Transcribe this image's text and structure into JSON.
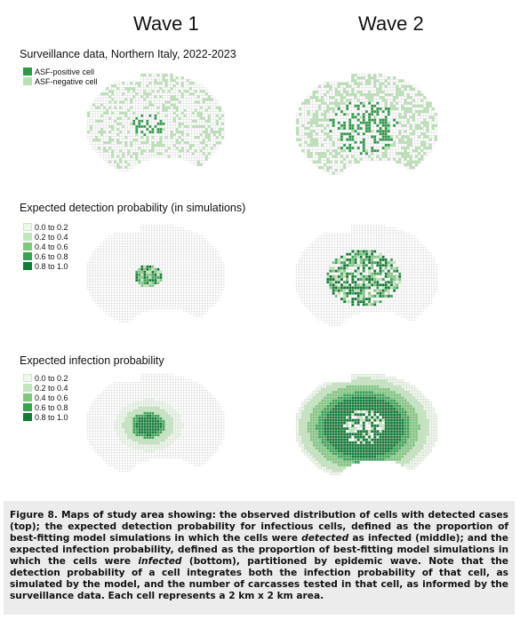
{
  "waves": [
    "Wave 1",
    "Wave 2"
  ],
  "sections": [
    {
      "title": "Surveillance data, Northern Italy, 2022-2023",
      "legend": [
        {
          "label": "ASF-positive cell",
          "color": "#2e9a49"
        },
        {
          "label": "ASF-negative cell",
          "color": "#b6e2b0"
        }
      ]
    },
    {
      "title": "Expected detection probability (in simulations)",
      "legend": [
        {
          "label": "0.0 to 0.2",
          "color": "#edf8ea"
        },
        {
          "label": "0.2 to 0.4",
          "color": "#c2e6bc"
        },
        {
          "label": "0.4 to 0.6",
          "color": "#7fc87f"
        },
        {
          "label": "0.6 to 0.8",
          "color": "#3aa352"
        },
        {
          "label": "0.8 to 1.0",
          "color": "#127a35"
        }
      ]
    },
    {
      "title": "Expected infection probability",
      "legend": [
        {
          "label": "0.0 to 0.2",
          "color": "#edf8ea"
        },
        {
          "label": "0.2 to 0.4",
          "color": "#c2e6bc"
        },
        {
          "label": "0.4 to 0.6",
          "color": "#7fc87f"
        },
        {
          "label": "0.6 to 0.8",
          "color": "#3aa352"
        },
        {
          "label": "0.8 to 1.0",
          "color": "#127a35"
        }
      ]
    }
  ],
  "caption": {
    "part1": "Figure 8. Maps of study area showing: the observed distribution of cells with detected cases (top); the expected detection probability for infectious cells, defined as the proportion of best-fitting model simulations in which the cells were ",
    "detected": "detected",
    "part2": " as infected (middle); and the expected infection probability, defined as the proportion of best-fitting model simulations in which the cells were ",
    "infected": "infected",
    "part3": " (bottom), partitioned by epidemic wave. Note that the detection probability of a cell integrates both the infection probability of that cell, as simulated by the model, and the number of carcasses tested in that cell, as informed by the surveillance data. Each cell represents a 2 km x 2 km area."
  }
}
